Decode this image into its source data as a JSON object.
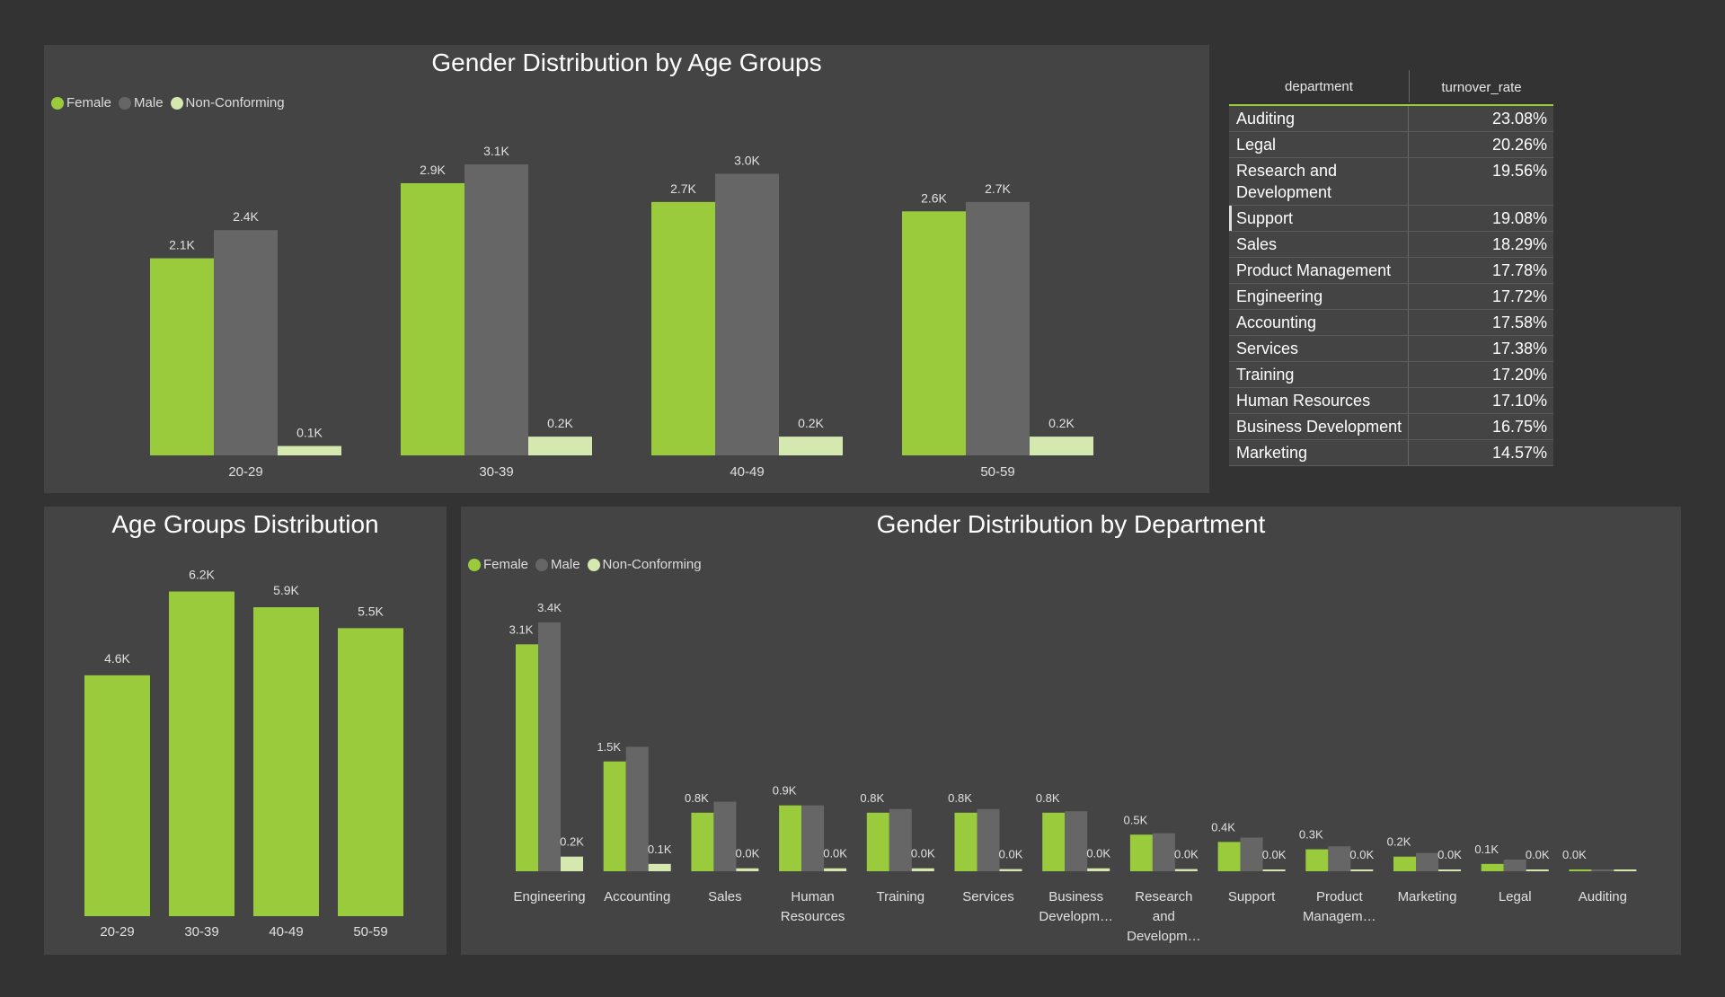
{
  "colors": {
    "female": "#9acb3c",
    "male": "#666666",
    "non_conforming": "#d4e8b0",
    "panel": "#444444",
    "background": "#333333"
  },
  "legend": {
    "female": "Female",
    "male": "Male",
    "non_conforming": "Non-Conforming"
  },
  "turnover_table": {
    "headers": {
      "department": "department",
      "turnover_rate": "turnover_rate"
    },
    "rows": [
      {
        "department": "Auditing",
        "turnover_rate": "23.08%"
      },
      {
        "department": "Legal",
        "turnover_rate": "20.26%"
      },
      {
        "department": "Research and Development",
        "turnover_rate": "19.56%"
      },
      {
        "department": "Support",
        "turnover_rate": "19.08%"
      },
      {
        "department": "Sales",
        "turnover_rate": "18.29%"
      },
      {
        "department": "Product Management",
        "turnover_rate": "17.78%"
      },
      {
        "department": "Engineering",
        "turnover_rate": "17.72%"
      },
      {
        "department": "Accounting",
        "turnover_rate": "17.58%"
      },
      {
        "department": "Services",
        "turnover_rate": "17.38%"
      },
      {
        "department": "Training",
        "turnover_rate": "17.20%"
      },
      {
        "department": "Human Resources",
        "turnover_rate": "17.10%"
      },
      {
        "department": "Business Development",
        "turnover_rate": "16.75%"
      },
      {
        "department": "Marketing",
        "turnover_rate": "14.57%"
      }
    ]
  },
  "chart_data": [
    {
      "type": "bar",
      "title": "Gender Distribution by Age Groups",
      "categories": [
        "20-29",
        "30-39",
        "40-49",
        "50-59"
      ],
      "series": [
        {
          "name": "Female",
          "values": [
            2100,
            2900,
            2700,
            2600
          ],
          "labels": [
            "2.1K",
            "2.9K",
            "2.7K",
            "2.6K"
          ]
        },
        {
          "name": "Male",
          "values": [
            2400,
            3100,
            3000,
            2700
          ],
          "labels": [
            "2.4K",
            "3.1K",
            "3.0K",
            "2.7K"
          ]
        },
        {
          "name": "Non-Conforming",
          "values": [
            100,
            200,
            200,
            200
          ],
          "labels": [
            "0.1K",
            "0.2K",
            "0.2K",
            "0.2K"
          ]
        }
      ],
      "legend_position": "top-left",
      "grid": false
    },
    {
      "type": "bar",
      "title": "Age Groups Distribution",
      "categories": [
        "20-29",
        "30-39",
        "40-49",
        "50-59"
      ],
      "series": [
        {
          "values": [
            4600,
            6200,
            5900,
            5500
          ],
          "labels": [
            "4.6K",
            "6.2K",
            "5.9K",
            "5.5K"
          ]
        }
      ],
      "grid": false
    },
    {
      "type": "bar",
      "title": "Gender Distribution by Department",
      "categories": [
        "Engineering",
        "Accounting",
        "Sales",
        "Human Resources",
        "Training",
        "Services",
        "Business Developm…",
        "Research and Developm…",
        "Support",
        "Product Managem…",
        "Marketing",
        "Legal",
        "Auditing"
      ],
      "series": [
        {
          "name": "Female",
          "values": [
            3100,
            1500,
            800,
            900,
            800,
            800,
            800,
            500,
            400,
            300,
            200,
            100,
            0
          ],
          "labels": [
            "3.1K",
            "1.5K",
            "0.8K",
            "0.9K",
            "0.8K",
            "0.8K",
            "0.8K",
            "0.5K",
            "0.4K",
            "0.3K",
            "0.2K",
            "0.1K",
            "0.0K"
          ]
        },
        {
          "name": "Male",
          "values": [
            3400,
            1700,
            950,
            900,
            850,
            850,
            820,
            520,
            460,
            340,
            250,
            160,
            20
          ],
          "labels": [
            "3.4K",
            "",
            "",
            "",
            "",
            "",
            "",
            "",
            "",
            "",
            "",
            "",
            ""
          ]
        },
        {
          "name": "Non-Conforming",
          "values": [
            200,
            100,
            40,
            40,
            40,
            30,
            40,
            30,
            20,
            10,
            10,
            10,
            0
          ],
          "labels": [
            "0.2K",
            "0.1K",
            "0.0K",
            "0.0K",
            "0.0K",
            "0.0K",
            "0.0K",
            "0.0K",
            "0.0K",
            "0.0K",
            "0.0K",
            "0.0K",
            ""
          ]
        }
      ],
      "legend_position": "top-left",
      "grid": false
    }
  ]
}
